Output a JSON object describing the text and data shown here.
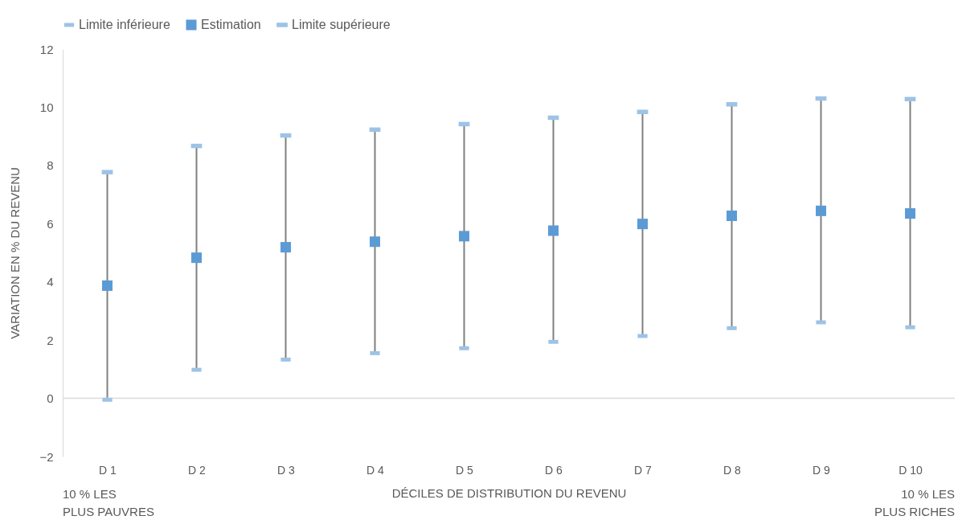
{
  "chart_data": {
    "type": "scatter",
    "xlabel": "DÉCILES DE DISTRIBUTION DU REVENU",
    "ylabel": "VARIATION EN % DU REVENU",
    "categories": [
      "D 1",
      "D 2",
      "D 3",
      "D 4",
      "D 5",
      "D 6",
      "D 7",
      "D 8",
      "D 9",
      "D 10"
    ],
    "series": [
      {
        "name": "Limite inférieure",
        "color": "#9dc3e6",
        "values": [
          -0.05,
          0.98,
          1.33,
          1.55,
          1.72,
          1.94,
          2.14,
          2.41,
          2.61,
          2.44
        ]
      },
      {
        "name": "Estimation",
        "color": "#5b9bd5",
        "marker": "square",
        "values": [
          3.87,
          4.83,
          5.19,
          5.38,
          5.57,
          5.76,
          5.99,
          6.27,
          6.44,
          6.35
        ]
      },
      {
        "name": "Limite supérieure",
        "color": "#9dc3e6",
        "values": [
          7.77,
          8.67,
          9.03,
          9.23,
          9.42,
          9.64,
          9.84,
          10.1,
          10.3,
          10.28
        ]
      }
    ],
    "ylim": [
      -2,
      12
    ],
    "yticks": [
      -2,
      0,
      2,
      4,
      6,
      8,
      10,
      12
    ],
    "grid": false,
    "legend": "top",
    "ref_lines": [
      {
        "axis": "y",
        "value": 0,
        "color": "#d9d9d9"
      }
    ],
    "annotations": [
      "10 % LES PLUS PAUVRES",
      "10 % LES PLUS RICHES"
    ]
  }
}
